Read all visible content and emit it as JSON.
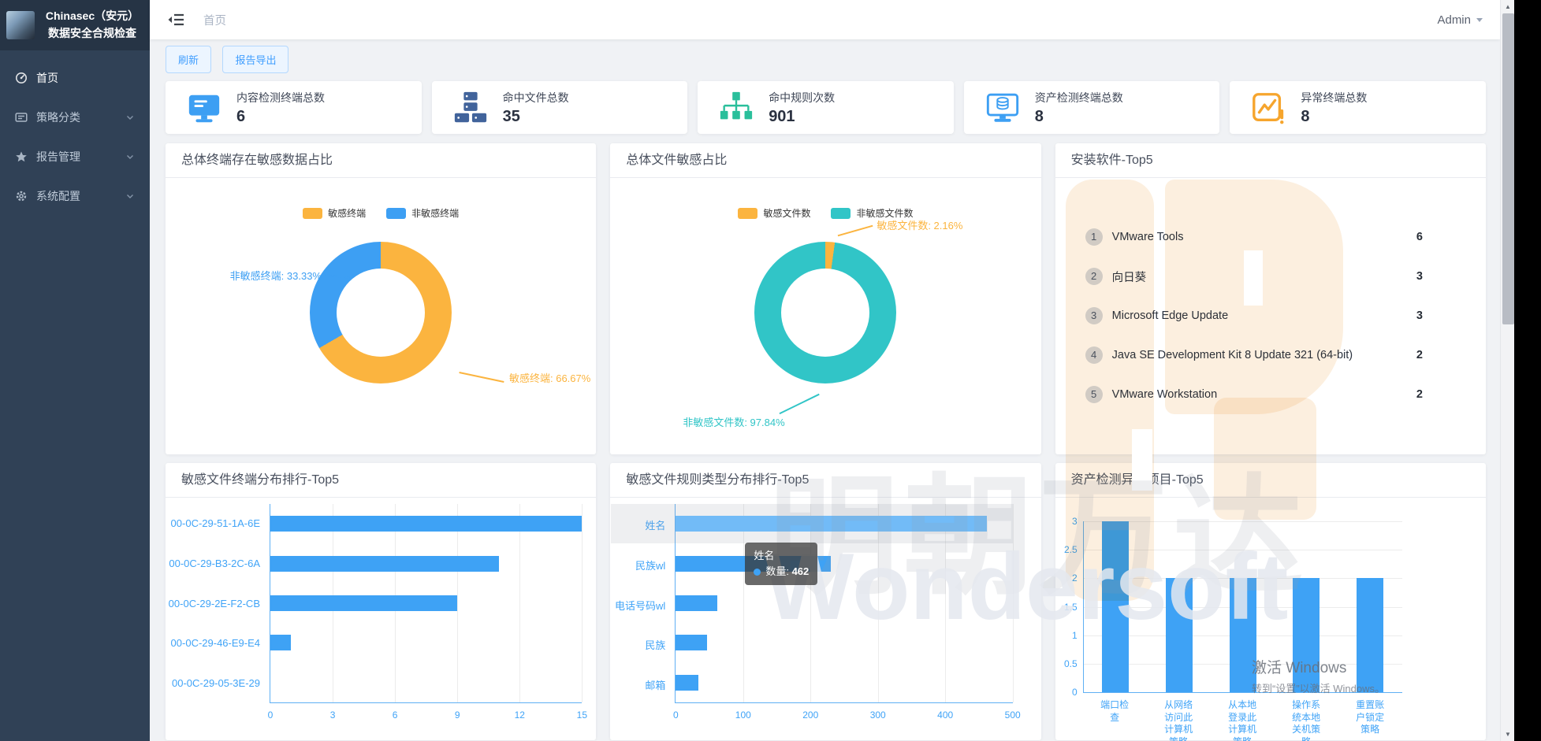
{
  "app": {
    "title": "Chinasec（安元）数据安全合规检查"
  },
  "header": {
    "breadcrumb": "首页",
    "user": "Admin"
  },
  "sidebar": {
    "items": [
      {
        "label": "首页",
        "icon": "dashboard-icon",
        "active": true,
        "expandable": false
      },
      {
        "label": "策略分类",
        "icon": "policy-icon",
        "active": false,
        "expandable": true
      },
      {
        "label": "报告管理",
        "icon": "report-icon",
        "active": false,
        "expandable": true
      },
      {
        "label": "系统配置",
        "icon": "settings-icon",
        "active": false,
        "expandable": true
      }
    ]
  },
  "toolbar": {
    "refresh": "刷新",
    "export": "报告导出"
  },
  "stats": [
    {
      "label": "内容检测终端总数",
      "value": "6",
      "icon": "content-terminal-icon",
      "color": "#3d9ff3"
    },
    {
      "label": "命中文件总数",
      "value": "35",
      "icon": "hit-files-icon",
      "color": "#41639b"
    },
    {
      "label": "命中规则次数",
      "value": "901",
      "icon": "hit-rules-icon",
      "color": "#2abf9b"
    },
    {
      "label": "资产检测终端总数",
      "value": "8",
      "icon": "asset-terminal-icon",
      "color": "#3d9ff3"
    },
    {
      "label": "异常终端总数",
      "value": "8",
      "icon": "anomaly-terminal-icon",
      "color": "#f6a52d"
    }
  ],
  "chart_data": {
    "terminal_ratio": {
      "type": "pie",
      "title": "总体终端存在敏感数据占比",
      "legend_position": "top",
      "slices": [
        {
          "name": "敏感终端",
          "pct": 66.67,
          "color": "#fbb43f"
        },
        {
          "name": "非敏感终端",
          "pct": 33.33,
          "color": "#3d9ff3"
        }
      ]
    },
    "file_ratio": {
      "type": "pie",
      "title": "总体文件敏感占比",
      "legend_position": "top",
      "slices": [
        {
          "name": "敏感文件数",
          "pct": 2.16,
          "color": "#fbb43f"
        },
        {
          "name": "非敏感文件数",
          "pct": 97.84,
          "color": "#31c5c7"
        }
      ]
    },
    "software_top5": {
      "type": "table",
      "title": "安装软件-Top5",
      "items": [
        {
          "rank": "1",
          "name": "VMware Tools",
          "count": "6"
        },
        {
          "rank": "2",
          "name": "向日葵",
          "count": "3"
        },
        {
          "rank": "3",
          "name": "Microsoft Edge Update",
          "count": "3"
        },
        {
          "rank": "4",
          "name": "Java SE Development Kit 8 Update 321 (64-bit)",
          "count": "2"
        },
        {
          "rank": "5",
          "name": "VMware Workstation",
          "count": "2"
        }
      ]
    },
    "terminal_dist": {
      "type": "bar",
      "orientation": "horizontal",
      "title": "敏感文件终端分布排行-Top5",
      "categories": [
        "00-0C-29-51-1A-6E",
        "00-0C-29-B3-2C-6A",
        "00-0C-29-2E-F2-CB",
        "00-0C-29-46-E9-E4",
        "00-0C-29-05-3E-29"
      ],
      "values": [
        15,
        11,
        9,
        1,
        0
      ],
      "xticks": [
        "0",
        "3",
        "6",
        "9",
        "12",
        "15"
      ],
      "xmax": 15,
      "bar_color": "#3ea2f5",
      "grid": true
    },
    "rule_type_dist": {
      "type": "bar",
      "orientation": "horizontal",
      "title": "敏感文件规则类型分布排行-Top5",
      "categories": [
        "姓名",
        "民族wl",
        "电话号码wl",
        "民族",
        "邮箱"
      ],
      "values": [
        462,
        230,
        62,
        46,
        33
      ],
      "xticks": [
        "0",
        "100",
        "200",
        "300",
        "400",
        "500"
      ],
      "xmax": 500,
      "bar_color": "#3ea2f5",
      "highlight_index": 0,
      "highlight_color": "#72bbf7",
      "grid": true,
      "tooltip": {
        "title": "姓名",
        "series_label": "数量",
        "value": "462"
      }
    },
    "asset_anomaly": {
      "type": "bar",
      "orientation": "vertical",
      "title": "资产检测异常项目-Top5",
      "categories": [
        "端口检查",
        "从网络访问此计算机策略",
        "从本地登录此计算机策略",
        "操作系统本地关机策略",
        "重置账户锁定策略"
      ],
      "values": [
        3,
        2,
        2,
        2,
        2
      ],
      "yticks": [
        "0",
        "0.5",
        "1",
        "1.5",
        "2",
        "2.5",
        "3"
      ],
      "ymax": 3,
      "bar_color": "#3ea2f5",
      "grid": true
    }
  },
  "watermarks": {
    "brand_cn": "明朝万达",
    "brand_en": "Wondersoft",
    "activate_title": "激活 Windows",
    "activate_sub": "转到“设置”以激活 Windows。"
  }
}
